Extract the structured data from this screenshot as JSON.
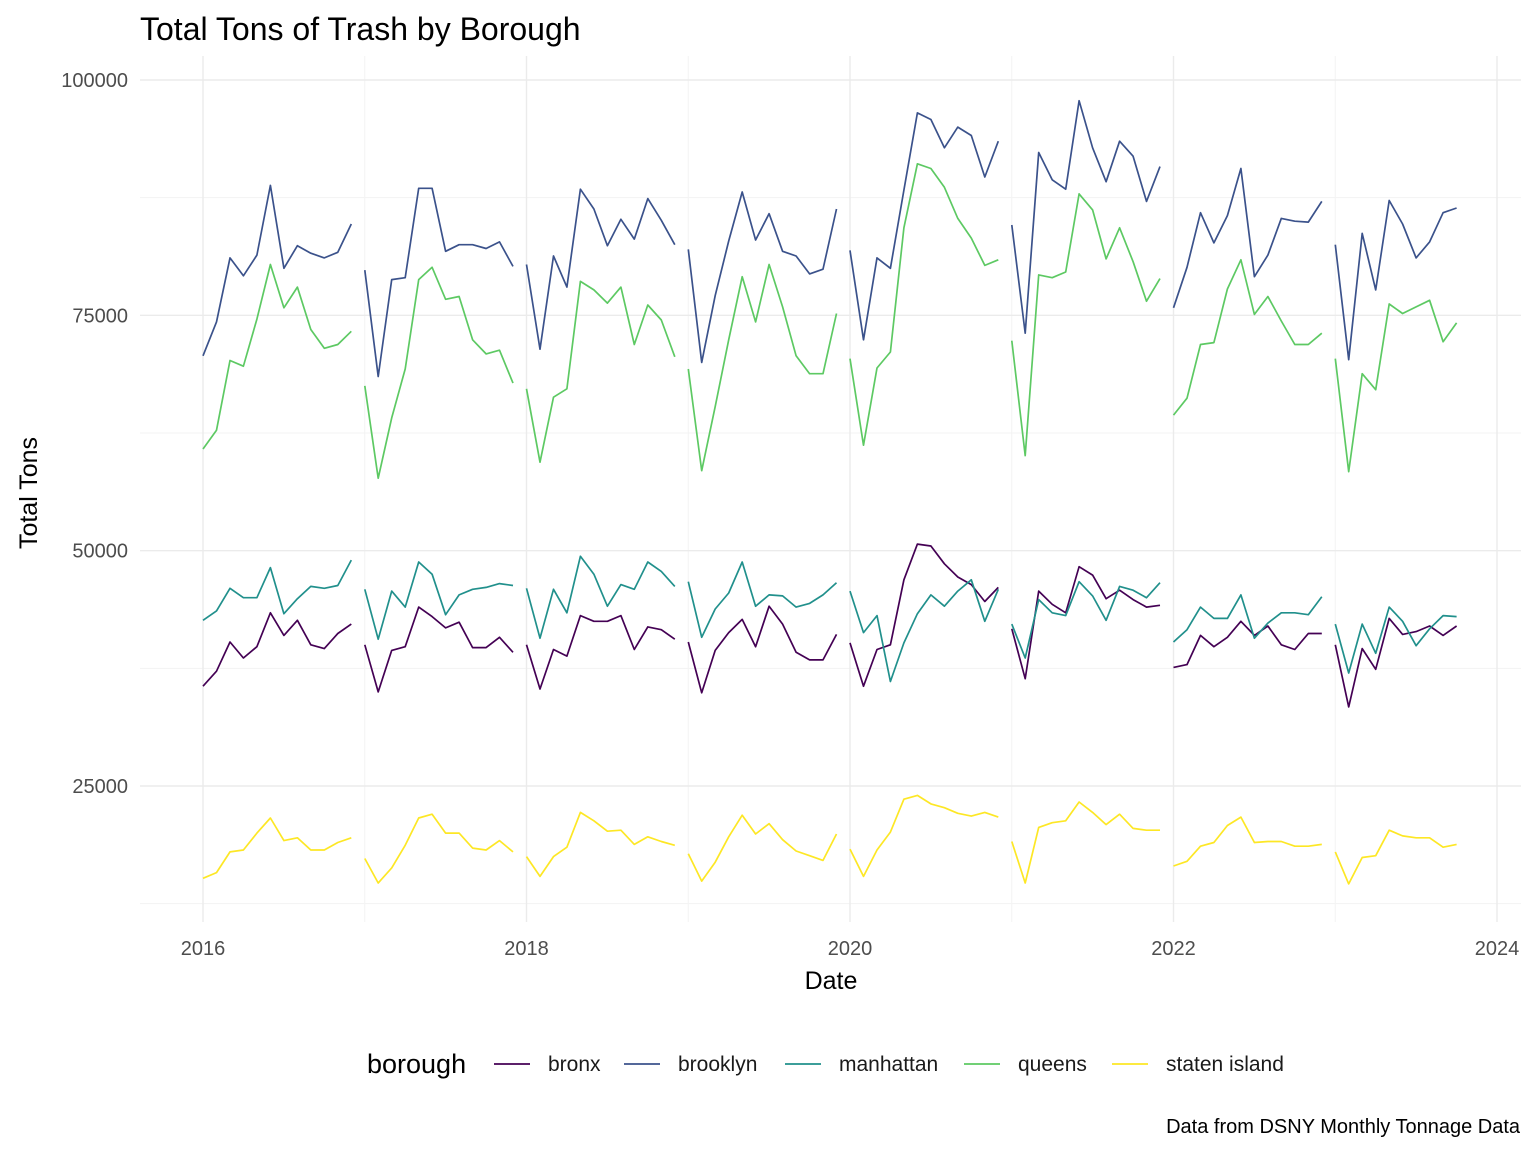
{
  "chart_data": {
    "type": "line",
    "title": "Total Tons of Trash by Borough",
    "xlabel": "Date",
    "ylabel": "Total Tons",
    "caption": "Data from DSNY Monthly Tonnage Data",
    "legend_title": "borough",
    "legend_position": "bottom",
    "grid": true,
    "xlim": [
      2015.875,
      2024.125
    ],
    "ylim": [
      12000,
      100000
    ],
    "x_ticks": [
      2016,
      2018,
      2020,
      2022,
      2024
    ],
    "x_tick_labels": [
      "2016",
      "2018",
      "2020",
      "2022",
      "2024"
    ],
    "y_ticks": [
      25000,
      50000,
      75000,
      100000
    ],
    "y_tick_labels": [
      "25000",
      "50000",
      "75000",
      "100000"
    ],
    "x_note": "x values are years (decimal); each series is drawn as one segment per calendar year",
    "series": [
      {
        "name": "bronx",
        "color": "#440154",
        "years": [
          {
            "start": 2016,
            "values": [
              35600,
              37200,
              40300,
              38600,
              39800,
              43400,
              41000,
              42600,
              40000,
              39600,
              41200,
              42200
            ]
          },
          {
            "start": 2017,
            "values": [
              40000,
              35000,
              39400,
              39800,
              44000,
              43000,
              41800,
              42400,
              39700,
              39700,
              40800,
              39200
            ]
          },
          {
            "start": 2018,
            "values": [
              40000,
              35300,
              39500,
              38800,
              43100,
              42500,
              42500,
              43100,
              39500,
              41900,
              41600,
              40600
            ]
          },
          {
            "start": 2019,
            "values": [
              40300,
              34900,
              39400,
              41300,
              42700,
              39800,
              44100,
              42200,
              39200,
              38400,
              38400,
              41100
            ]
          },
          {
            "start": 2020,
            "values": [
              40200,
              35600,
              39500,
              40000,
              46900,
              50700,
              50500,
              48600,
              47200,
              46400,
              44600,
              46100
            ]
          },
          {
            "start": 2021,
            "values": [
              41700,
              36400,
              45700,
              44300,
              43400,
              48300,
              47400,
              44900,
              45800,
              44800,
              44000,
              44200
            ]
          },
          {
            "start": 2022,
            "values": [
              37600,
              37900,
              41000,
              39800,
              40800,
              42500,
              41000,
              42000,
              40000,
              39500,
              41200,
              41200
            ]
          },
          {
            "start": 2023,
            "values": [
              40000,
              33400,
              39600,
              37400,
              42800,
              41100,
              41400,
              42000,
              41000,
              42000
            ]
          }
        ]
      },
      {
        "name": "brooklyn",
        "color": "#3b528b",
        "years": [
          {
            "start": 2016,
            "values": [
              70700,
              74300,
              81100,
              79200,
              81400,
              88800,
              80000,
              82400,
              81600,
              81100,
              81700,
              84700
            ]
          },
          {
            "start": 2017,
            "values": [
              79800,
              68500,
              78800,
              79000,
              88500,
              88500,
              81800,
              82500,
              82500,
              82100,
              82800,
              80200
            ]
          },
          {
            "start": 2018,
            "values": [
              80400,
              71400,
              81300,
              78000,
              88400,
              86300,
              82400,
              85200,
              83100,
              87400,
              85100,
              82500
            ]
          },
          {
            "start": 2019,
            "values": [
              82000,
              70000,
              77100,
              82900,
              88100,
              83000,
              85800,
              81800,
              81300,
              79400,
              79900,
              86300
            ]
          },
          {
            "start": 2020,
            "values": [
              81900,
              72400,
              81100,
              80000,
              88300,
              96500,
              95800,
              92800,
              95000,
              94100,
              89700,
              93500
            ]
          },
          {
            "start": 2021,
            "values": [
              84600,
              73100,
              92300,
              89400,
              88400,
              97800,
              92800,
              89200,
              93500,
              91900,
              87100,
              90800
            ]
          },
          {
            "start": 2022,
            "values": [
              75800,
              80100,
              85900,
              82700,
              85600,
              90600,
              79100,
              81400,
              85300,
              85000,
              84900,
              87100
            ]
          },
          {
            "start": 2023,
            "values": [
              82500,
              70300,
              83700,
              77700,
              87200,
              84700,
              81100,
              82800,
              85900,
              86400
            ]
          }
        ]
      },
      {
        "name": "manhattan",
        "color": "#21908c",
        "years": [
          {
            "start": 2016,
            "values": [
              42600,
              43600,
              46000,
              45000,
              45000,
              48200,
              43300,
              44900,
              46200,
              46000,
              46300,
              49000
            ]
          },
          {
            "start": 2017,
            "values": [
              45900,
              40600,
              45700,
              44000,
              48800,
              47500,
              43200,
              45300,
              45900,
              46100,
              46500,
              46300
            ]
          },
          {
            "start": 2018,
            "values": [
              46000,
              40700,
              45900,
              43400,
              49400,
              47500,
              44100,
              46400,
              45900,
              48800,
              47800,
              46200
            ]
          },
          {
            "start": 2019,
            "values": [
              46700,
              40800,
              43800,
              45500,
              48800,
              44100,
              45300,
              45200,
              44000,
              44400,
              45300,
              46600
            ]
          },
          {
            "start": 2020,
            "values": [
              45700,
              41300,
              43100,
              36100,
              40200,
              43300,
              45300,
              44100,
              45700,
              46900,
              42500,
              45900
            ]
          },
          {
            "start": 2021,
            "values": [
              42200,
              38600,
              44800,
              43400,
              43100,
              46700,
              45200,
              42600,
              46200,
              45800,
              45000,
              46600
            ]
          },
          {
            "start": 2022,
            "values": [
              40300,
              41600,
              44000,
              42800,
              42800,
              45300,
              40700,
              42300,
              43400,
              43400,
              43200,
              45100
            ]
          },
          {
            "start": 2023,
            "values": [
              42200,
              37000,
              42200,
              39100,
              44000,
              42500,
              39900,
              41700,
              43100,
              43000
            ]
          }
        ]
      },
      {
        "name": "queens",
        "color": "#5dc963",
        "years": [
          {
            "start": 2016,
            "values": [
              60800,
              62800,
              70200,
              69600,
              74600,
              80400,
              75800,
              78000,
              73500,
              71500,
              71900,
              73300
            ]
          },
          {
            "start": 2017,
            "values": [
              67500,
              57700,
              64100,
              69300,
              78800,
              80100,
              76700,
              77000,
              72400,
              70900,
              71300,
              67800
            ]
          },
          {
            "start": 2018,
            "values": [
              67200,
              59400,
              66300,
              67200,
              78600,
              77700,
              76300,
              78000,
              71900,
              76100,
              74500,
              70600
            ]
          },
          {
            "start": 2019,
            "values": [
              69300,
              58500,
              65300,
              72400,
              79100,
              74300,
              80400,
              75900,
              70700,
              68800,
              68800,
              75200
            ]
          },
          {
            "start": 2020,
            "values": [
              70400,
              61200,
              69400,
              71100,
              84300,
              91100,
              90600,
              88600,
              85300,
              83200,
              80300,
              80900
            ]
          },
          {
            "start": 2021,
            "values": [
              72300,
              60100,
              79300,
              79000,
              79600,
              87900,
              86200,
              81000,
              84300,
              80700,
              76500,
              78900
            ]
          },
          {
            "start": 2022,
            "values": [
              64400,
              66200,
              71900,
              72100,
              77800,
              80900,
              75100,
              77000,
              74400,
              71900,
              71900,
              73100
            ]
          },
          {
            "start": 2023,
            "values": [
              70400,
              58400,
              68800,
              67100,
              76200,
              75200,
              75900,
              76600,
              72200,
              74200
            ]
          }
        ]
      },
      {
        "name": "staten island",
        "color": "#fde725",
        "years": [
          {
            "start": 2016,
            "values": [
              15200,
              15800,
              18000,
              18200,
              20000,
              21600,
              19200,
              19500,
              18200,
              18200,
              19000,
              19500
            ]
          },
          {
            "start": 2017,
            "values": [
              17300,
              14700,
              16300,
              18700,
              21600,
              22000,
              20000,
              20000,
              18400,
              18200,
              19200,
              18000
            ]
          },
          {
            "start": 2018,
            "values": [
              17500,
              15400,
              17500,
              18500,
              22200,
              21300,
              20200,
              20300,
              18800,
              19600,
              19100,
              18700
            ]
          },
          {
            "start": 2019,
            "values": [
              17800,
              14900,
              16900,
              19600,
              21900,
              19900,
              21000,
              19300,
              18100,
              17600,
              17100,
              19900
            ]
          },
          {
            "start": 2020,
            "values": [
              18300,
              15400,
              18200,
              20100,
              23600,
              24000,
              23100,
              22700,
              22100,
              21800,
              22200,
              21700
            ]
          },
          {
            "start": 2021,
            "values": [
              19100,
              14700,
              20600,
              21100,
              21300,
              23300,
              22200,
              20900,
              22000,
              20500,
              20300,
              20300
            ]
          },
          {
            "start": 2022,
            "values": [
              16500,
              17000,
              18600,
              19000,
              20800,
              21700,
              19000,
              19100,
              19100,
              18600,
              18600,
              18800
            ]
          },
          {
            "start": 2023,
            "values": [
              18000,
              14600,
              17400,
              17600,
              20300,
              19700,
              19500,
              19500,
              18500,
              18800
            ]
          }
        ]
      }
    ]
  }
}
